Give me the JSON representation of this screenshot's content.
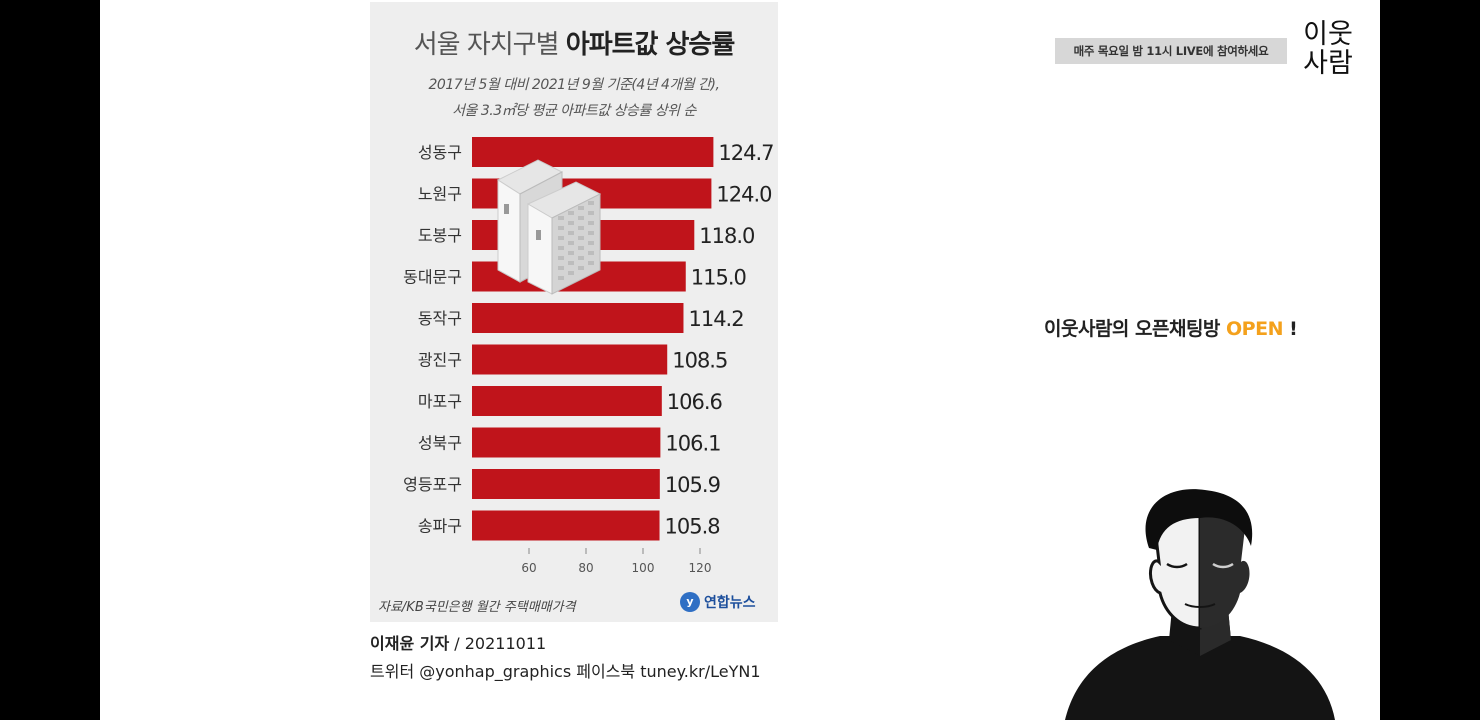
{
  "infographic": {
    "title_light": "서울 자치구별 ",
    "title_bold": "아파트값 상승률",
    "subtitle_line1": "2017년 5월 대비 2021년 9월 기준(4년 4개월 간),",
    "subtitle_line2": "서울 3.3㎡당 평균 아파트값 상승률 상위 순",
    "source": "자료/KB국민은행 월간 주택매매가격",
    "logo_text": "연합뉴스",
    "logo_mark": "y"
  },
  "chart_data": {
    "type": "bar",
    "orientation": "horizontal",
    "categories": [
      "성동구",
      "노원구",
      "도봉구",
      "동대문구",
      "동작구",
      "광진구",
      "마포구",
      "성북구",
      "영등포구",
      "송파구"
    ],
    "values": [
      124.7,
      124.0,
      118.0,
      115.0,
      114.2,
      108.5,
      106.6,
      106.1,
      105.9,
      105.8
    ],
    "value_labels": [
      "124.7",
      "124.0",
      "118.0",
      "115.0",
      "114.2",
      "108.5",
      "106.6",
      "106.1",
      "105.9",
      "105.8"
    ],
    "unit": "%",
    "x_ticks": [
      60,
      80,
      100,
      120
    ],
    "xlim": [
      60,
      130
    ],
    "bar_color": "#c0141b"
  },
  "credit": {
    "author": "이재윤 기자",
    "date": " / 20211011",
    "social": "트위터 @yonhap_graphics  페이스북 tuney.kr/LeYN1"
  },
  "sidebar": {
    "live_banner": "매주 목요일 밤 11시 LIVE에 참여하세요",
    "brand_line1": "이웃",
    "brand_line2": "사람",
    "openchat_text": "이웃사람의 오픈채팅방 ",
    "openchat_accent": "OPEN",
    "openchat_end": " !",
    "accent_color": "#f4a11c"
  }
}
